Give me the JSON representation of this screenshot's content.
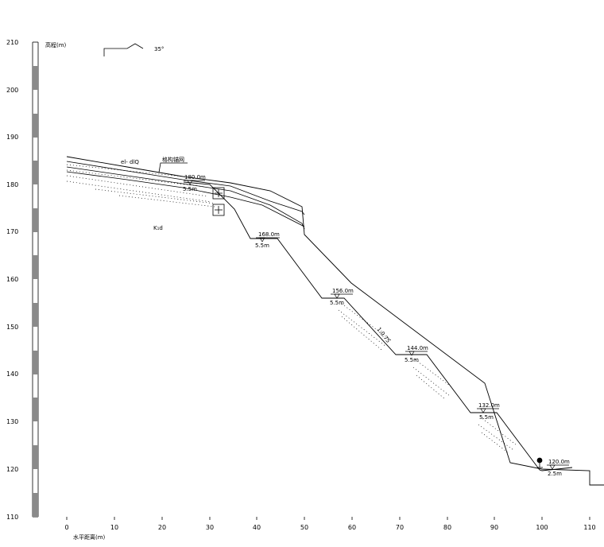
{
  "y_axis": {
    "label": "高程(m)",
    "ticks": [
      "210",
      "200",
      "190",
      "180",
      "170",
      "160",
      "150",
      "140",
      "130",
      "120",
      "110"
    ]
  },
  "x_axis": {
    "label": "水平距离(m)",
    "ticks": [
      "0",
      "10",
      "20",
      "30",
      "40",
      "50",
      "60",
      "70",
      "80",
      "90",
      "100",
      "110"
    ]
  },
  "dip_symbol": {
    "angle": "35°"
  },
  "labels": {
    "layer_top": "el- dlQ",
    "rock": "K₁d",
    "mesh": "格构锚网",
    "slope_ratio": "1:0.75"
  },
  "berms": [
    {
      "elev": "180.0m",
      "width": "5.5m"
    },
    {
      "elev": "168.0m",
      "width": "5.5m"
    },
    {
      "elev": "156.0m",
      "width": "5.5m"
    },
    {
      "elev": "144.0m",
      "width": "5.5m"
    },
    {
      "elev": "132.0m",
      "width": "5.5m"
    },
    {
      "elev": "120.0m",
      "width": "2.5m"
    }
  ]
}
